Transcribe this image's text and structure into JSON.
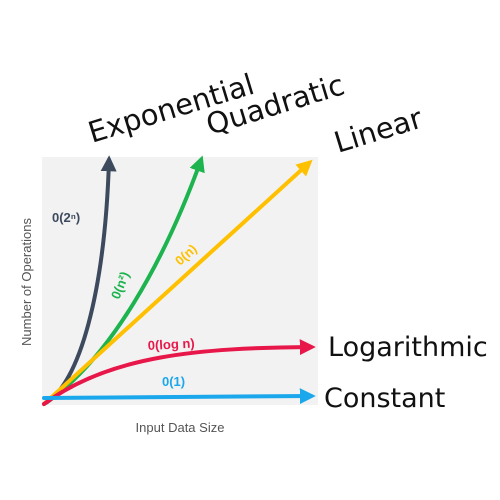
{
  "chart_data": {
    "type": "line",
    "title": "",
    "xlabel": "Input Data Size",
    "ylabel": "Number of Operations",
    "grid": false,
    "series": [
      {
        "name": "Exponential",
        "curve_label": "0(2ⁿ)",
        "color": "#3d4a5e"
      },
      {
        "name": "Quadratic",
        "curve_label": "0(n²)",
        "color": "#1db34e"
      },
      {
        "name": "Linear",
        "curve_label": "0(n)",
        "color": "#ffc000"
      },
      {
        "name": "Logarithmic",
        "curve_label": "0(log n)",
        "color": "#e8174a"
      },
      {
        "name": "Constant",
        "curve_label": "0(1)",
        "color": "#1aa7ec"
      }
    ],
    "background_color": "#f2f2f2"
  }
}
